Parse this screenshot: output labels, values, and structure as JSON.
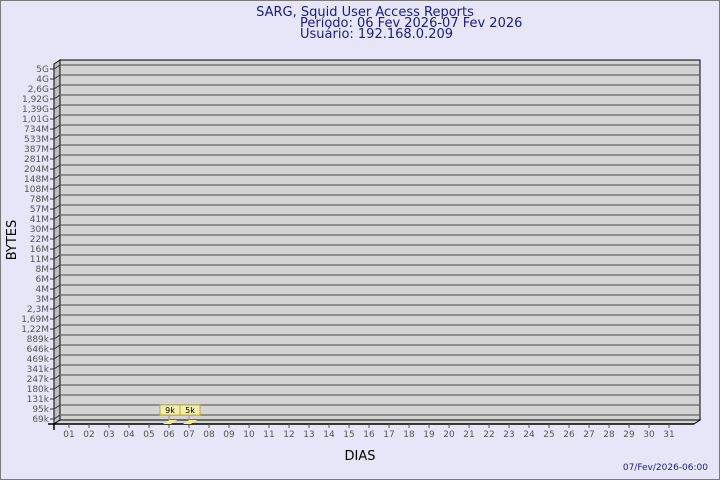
{
  "chart_data": {
    "type": "bar",
    "title": "SARG, Squid User Access Reports",
    "subtitle_period": "Período: 06 Fev 2026-07 Fev 2026",
    "subtitle_user": "Usuário: 192.168.0.209",
    "xlabel": "DIAS",
    "ylabel": "BYTES",
    "y_scale": "log",
    "y_ticks": [
      "69k",
      "95k",
      "131k",
      "180k",
      "247k",
      "341k",
      "469k",
      "646k",
      "889k",
      "1,22M",
      "1,69M",
      "2,3M",
      "3M",
      "4M",
      "6M",
      "8M",
      "11M",
      "16M",
      "22M",
      "30M",
      "41M",
      "57M",
      "78M",
      "108M",
      "148M",
      "204M",
      "281M",
      "387M",
      "533M",
      "734M",
      "1,01G",
      "1,39G",
      "1,92G",
      "2,6G",
      "4G",
      "5G"
    ],
    "categories": [
      "01",
      "02",
      "03",
      "04",
      "05",
      "06",
      "07",
      "08",
      "09",
      "10",
      "11",
      "12",
      "13",
      "14",
      "15",
      "16",
      "17",
      "18",
      "19",
      "20",
      "21",
      "22",
      "23",
      "24",
      "25",
      "26",
      "27",
      "28",
      "29",
      "30",
      "31"
    ],
    "bars": [
      {
        "day": "06",
        "label": "9k",
        "value": 9000
      },
      {
        "day": "07",
        "label": "5k",
        "value": 5000
      }
    ],
    "grid": true,
    "legend": "none",
    "timestamp": "07/Fev/2026-06:00",
    "colors": {
      "background": "#e6e6f8",
      "plot": "#d4d4d4",
      "side": "#bebebe",
      "title": "#1a1a8c",
      "bar": "#f8e890",
      "label_box": "#f0f0b0",
      "label_border": "#c8a828"
    }
  }
}
